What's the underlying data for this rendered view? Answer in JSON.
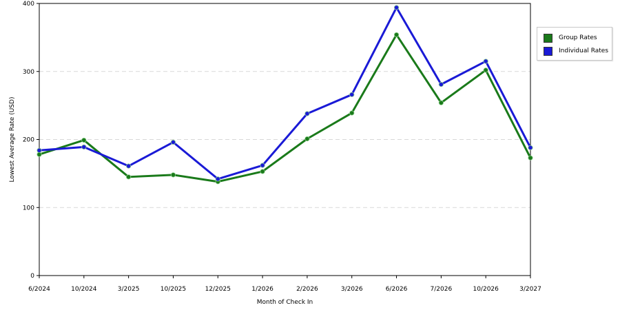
{
  "chart_data": {
    "type": "line",
    "categories": [
      "6/2024",
      "10/2024",
      "3/2025",
      "10/2025",
      "12/2025",
      "1/2026",
      "2/2026",
      "3/2026",
      "6/2026",
      "7/2026",
      "10/2026",
      "3/2027"
    ],
    "series": [
      {
        "name": "Group Rates",
        "color": "#1a7a1a",
        "values": [
          178,
          199,
          145,
          148,
          138,
          153,
          201,
          239,
          354,
          254,
          302,
          173
        ]
      },
      {
        "name": "Individual Rates",
        "color": "#1a1ad6",
        "values": [
          184,
          189,
          161,
          196,
          142,
          162,
          238,
          266,
          394,
          281,
          315,
          188
        ]
      }
    ],
    "xlabel": "Month of Check In",
    "ylabel": "Lowest Average Rate (USD)",
    "ylim": [
      0,
      400
    ],
    "yticks": [
      0,
      100,
      200,
      300,
      400
    ],
    "grid": true,
    "legend_position": "top-right"
  }
}
